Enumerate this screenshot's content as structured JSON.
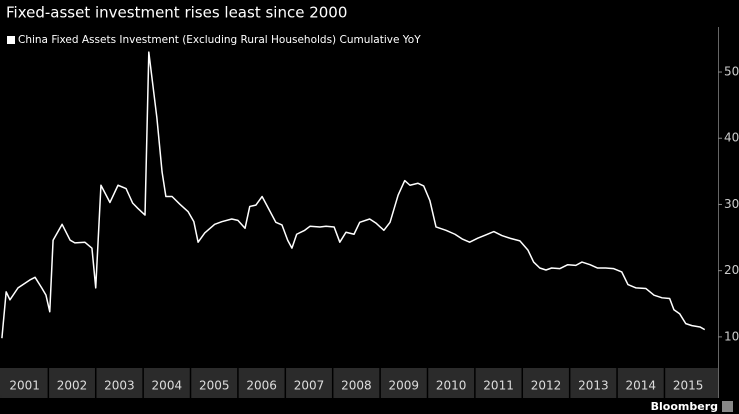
{
  "chart_data": {
    "type": "line",
    "title": "Fixed-asset investment rises least since 2000",
    "source": "Bloomberg",
    "series": [
      {
        "name": "China Fixed Assets Investment (Excluding Rural Households) Cumulative YoY",
        "color": "#ffffff",
        "x": [
          2001.02,
          2001.11,
          2001.19,
          2001.36,
          2001.61,
          2001.72,
          2001.86,
          2001.95,
          2002.03,
          2002.1,
          2002.29,
          2002.46,
          2002.56,
          2002.77,
          2002.92,
          2003.0,
          2003.11,
          2003.3,
          2003.47,
          2003.64,
          2003.78,
          2003.89,
          2004.04,
          2004.12,
          2004.29,
          2004.4,
          2004.48,
          2004.61,
          2004.78,
          2004.95,
          2005.07,
          2005.16,
          2005.3,
          2005.51,
          2005.66,
          2005.87,
          2006.0,
          2006.15,
          2006.25,
          2006.38,
          2006.51,
          2006.63,
          2006.8,
          2006.93,
          2007.05,
          2007.14,
          2007.24,
          2007.41,
          2007.52,
          2007.73,
          2007.86,
          2008.03,
          2008.15,
          2008.28,
          2008.45,
          2008.57,
          2008.78,
          2008.91,
          2009.08,
          2009.21,
          2009.38,
          2009.52,
          2009.63,
          2009.8,
          2009.92,
          2010.05,
          2010.18,
          2010.39,
          2010.58,
          2010.73,
          2010.89,
          2011.06,
          2011.23,
          2011.4,
          2011.57,
          2011.74,
          2011.95,
          2012.12,
          2012.24,
          2012.37,
          2012.5,
          2012.62,
          2012.79,
          2012.96,
          2013.13,
          2013.26,
          2013.43,
          2013.59,
          2013.76,
          2013.93,
          2014.1,
          2014.23,
          2014.4,
          2014.61,
          2014.78,
          2014.95,
          2015.11,
          2015.2,
          2015.32,
          2015.45,
          2015.58,
          2015.75,
          2015.85
        ],
        "values": [
          9.8,
          16.8,
          15.6,
          17.4,
          18.6,
          19.0,
          17.4,
          16.3,
          13.8,
          24.6,
          27.0,
          24.6,
          24.2,
          24.3,
          23.4,
          17.4,
          32.9,
          30.3,
          32.9,
          32.4,
          30.2,
          29.4,
          28.4,
          53.0,
          43.1,
          34.9,
          31.2,
          31.2,
          30.0,
          28.9,
          27.4,
          24.3,
          25.7,
          27.0,
          27.4,
          27.8,
          27.6,
          26.4,
          29.7,
          29.9,
          31.2,
          29.6,
          27.3,
          26.9,
          24.6,
          23.4,
          25.5,
          26.1,
          26.7,
          26.6,
          26.7,
          26.6,
          24.3,
          25.8,
          25.5,
          27.3,
          27.8,
          27.2,
          26.1,
          27.3,
          31.4,
          33.6,
          32.9,
          33.2,
          32.8,
          30.6,
          26.6,
          26.1,
          25.5,
          24.8,
          24.3,
          24.9,
          25.4,
          25.9,
          25.3,
          24.9,
          24.5,
          23.1,
          21.3,
          20.4,
          20.1,
          20.4,
          20.3,
          20.9,
          20.8,
          21.3,
          20.9,
          20.4,
          20.4,
          20.3,
          19.8,
          17.9,
          17.4,
          17.3,
          16.3,
          15.9,
          15.8,
          14.1,
          13.5,
          12.0,
          11.7,
          11.5,
          11.1
        ]
      }
    ],
    "xlim": [
      2000.98,
      2016.13
    ],
    "xticks": [
      {
        "value": 2001,
        "label": "2001"
      },
      {
        "value": 2002,
        "label": "2002"
      },
      {
        "value": 2003,
        "label": "2003"
      },
      {
        "value": 2004,
        "label": "2004"
      },
      {
        "value": 2005,
        "label": "2005"
      },
      {
        "value": 2006,
        "label": "2006"
      },
      {
        "value": 2007,
        "label": "2007"
      },
      {
        "value": 2008,
        "label": "2008"
      },
      {
        "value": 2009,
        "label": "2009"
      },
      {
        "value": 2010,
        "label": "2010"
      },
      {
        "value": 2011,
        "label": "2011"
      },
      {
        "value": 2012,
        "label": "2012"
      },
      {
        "value": 2013,
        "label": "2013"
      },
      {
        "value": 2014,
        "label": "2014"
      },
      {
        "value": 2015,
        "label": "2015"
      }
    ],
    "ylim": [
      5.3,
      56.8
    ],
    "yticks": [
      10,
      20,
      30,
      40,
      50
    ],
    "grid": false,
    "legend": "top-left"
  }
}
